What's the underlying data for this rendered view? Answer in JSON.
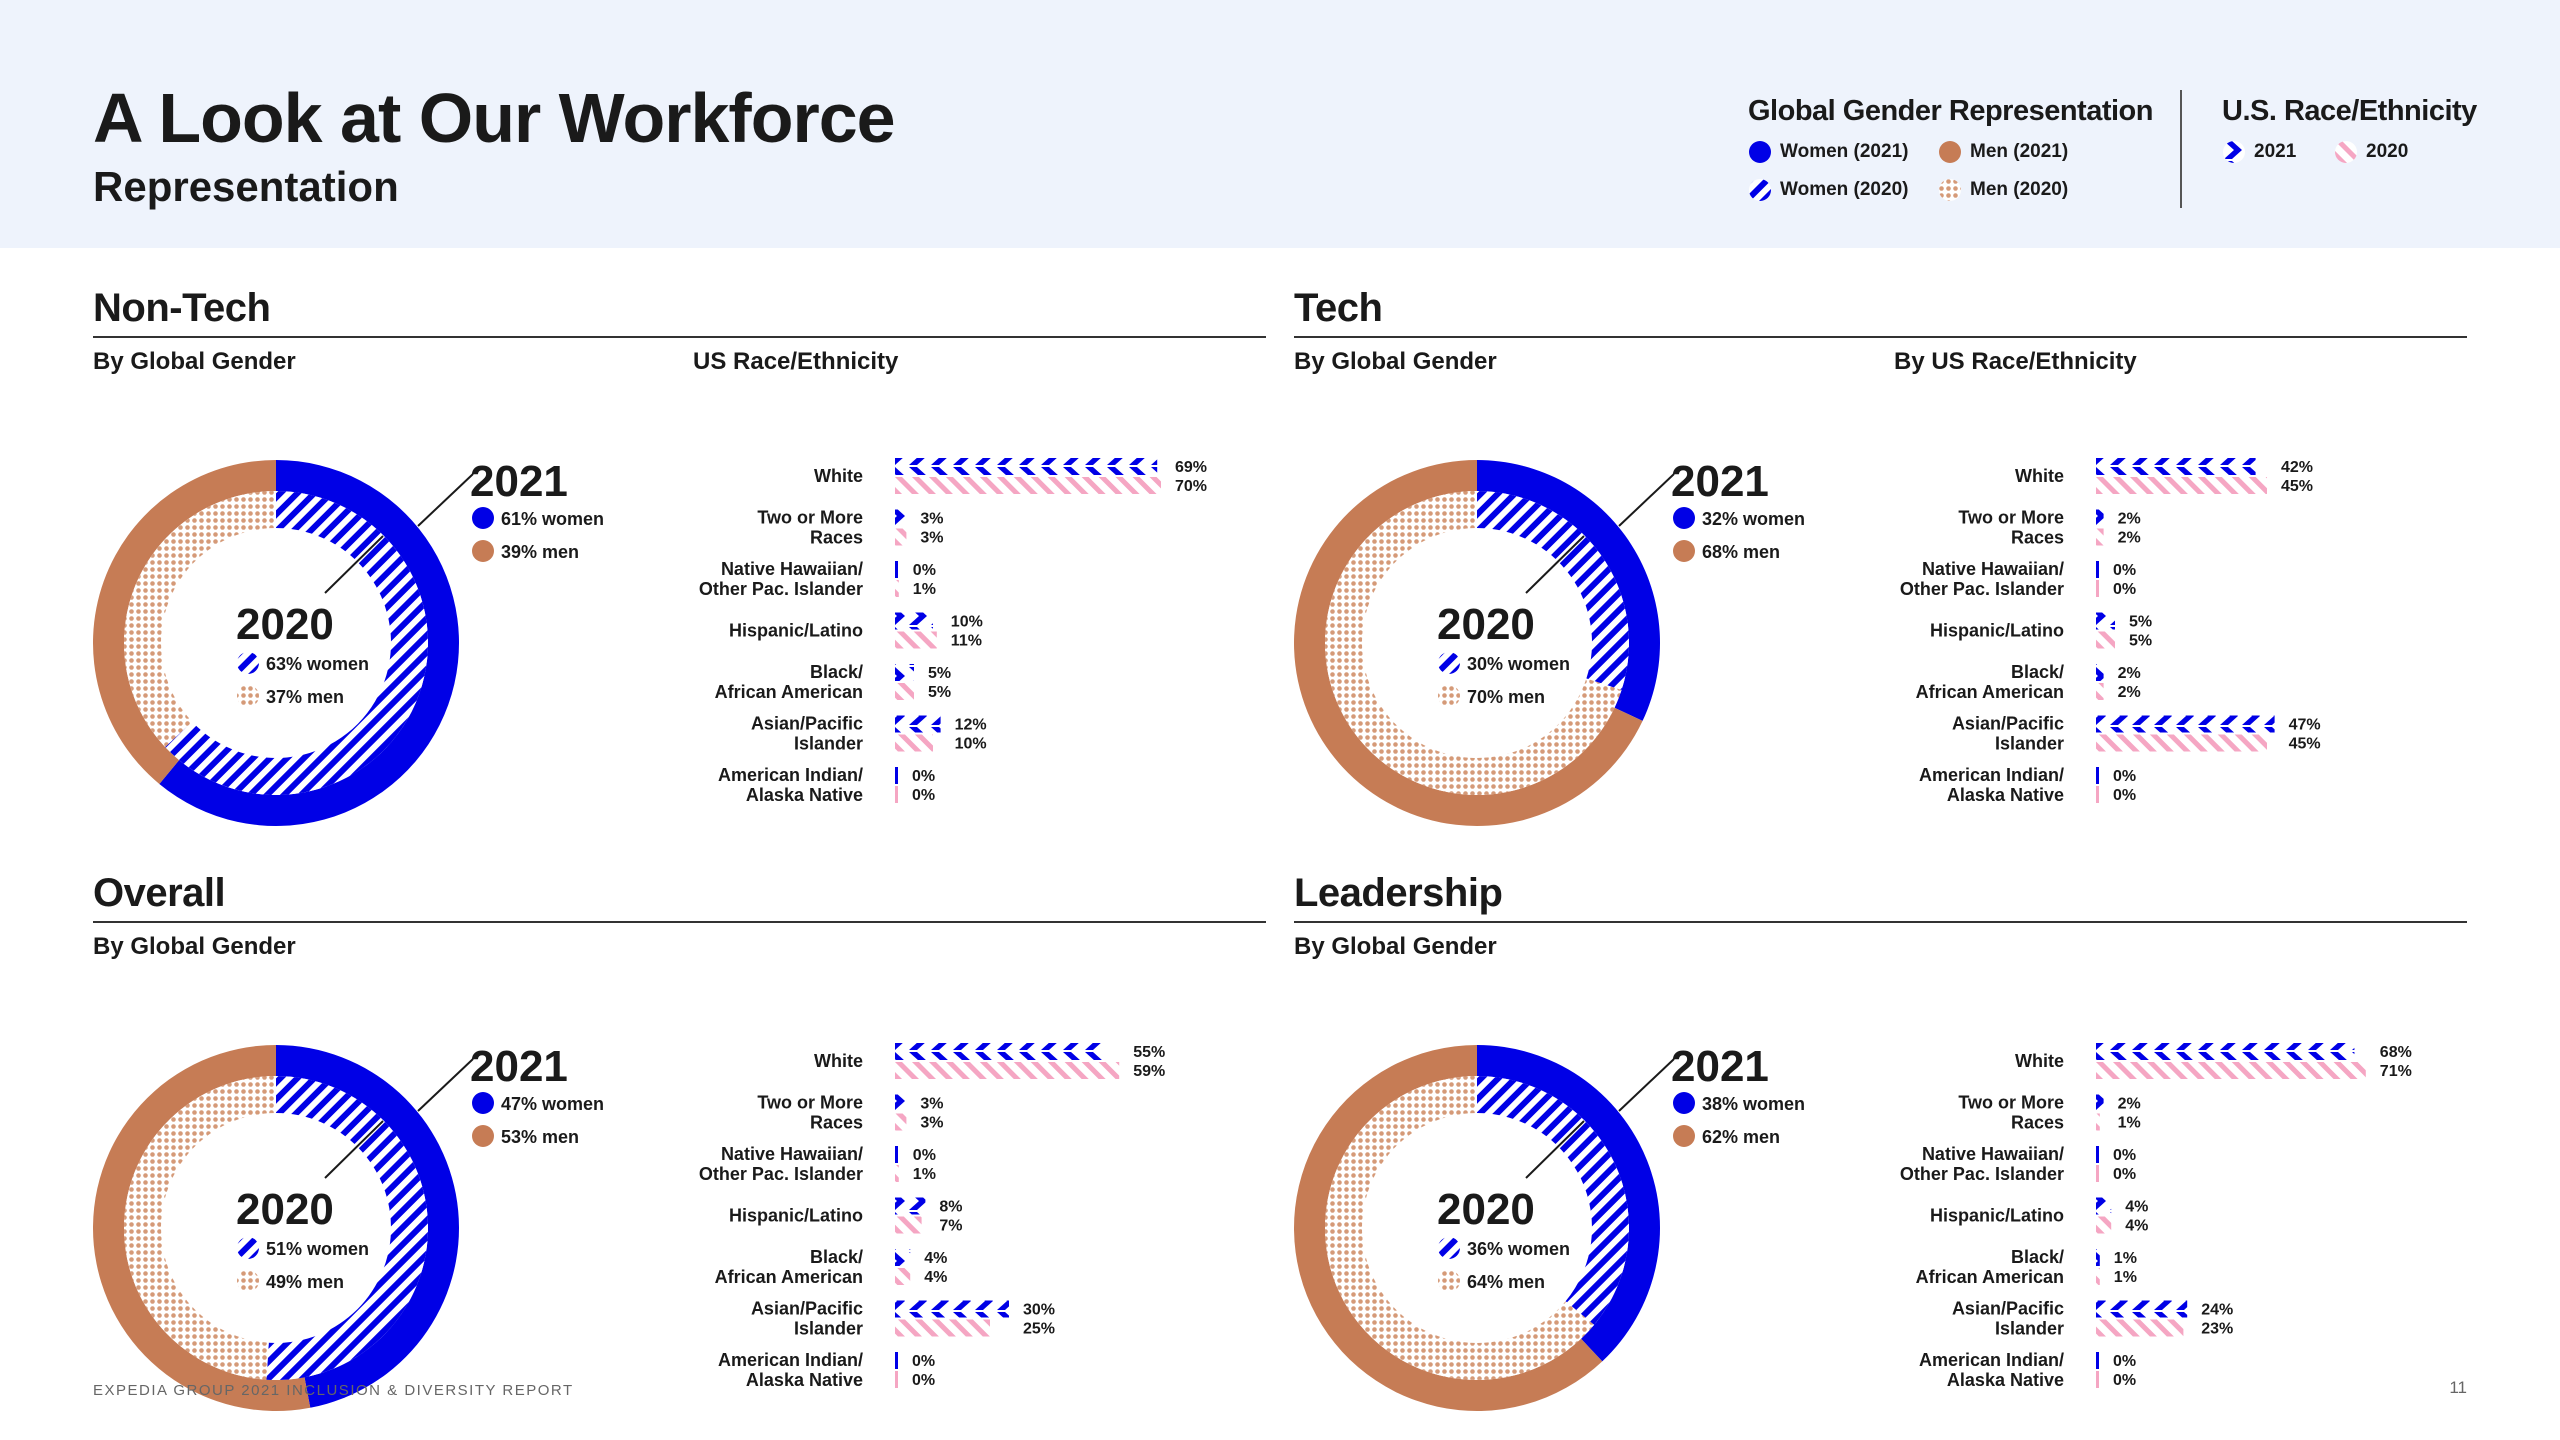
{
  "header": {
    "title": "A Look at Our Workforce",
    "subtitle": "Representation"
  },
  "legend": {
    "gender_title": "Global Gender Representation",
    "women_2021": "Women (2021)",
    "men_2021": "Men (2021)",
    "women_2020": "Women (2020)",
    "men_2020": "Men (2020)",
    "race_title": "U.S. Race/Ethnicity",
    "race_2021": "2021",
    "race_2020": "2020"
  },
  "colors": {
    "women": "#0000e6",
    "men": "#c67c55",
    "men_dots": "#e3b79e",
    "pink": "#f5a6c3",
    "text": "#1a1a1a"
  },
  "footer": {
    "text": "EXPEDIA GROUP 2021 INCLUSION & DIVERSITY REPORT",
    "page": "11"
  },
  "chart_data": [
    {
      "type": "donut+bar",
      "title": "Non-Tech",
      "gender_label": "By Global Gender",
      "race_label": "US Race/Ethnicity",
      "gender": {
        "year_outer": "2021",
        "women_outer": 61,
        "men_outer": 39,
        "women_outer_label": "61% women",
        "men_outer_label": "39% men",
        "year_inner": "2020",
        "women_inner": 63,
        "men_inner": 37,
        "women_inner_label": "63% women",
        "men_inner_label": "37% men"
      },
      "race": [
        {
          "line1": "White",
          "line2": "",
          "v2021": 69,
          "v2020": 70,
          "l2021": "69%",
          "l2020": "70%"
        },
        {
          "line1": "Two or More",
          "line2": "Races",
          "v2021": 3,
          "v2020": 3,
          "l2021": "3%",
          "l2020": "3%"
        },
        {
          "line1": "Native Hawaiian/",
          "line2": "Other Pac. Islander",
          "v2021": 0,
          "v2020": 1,
          "l2021": "0%",
          "l2020": "1%"
        },
        {
          "line1": "Hispanic/Latino",
          "line2": "",
          "v2021": 10,
          "v2020": 11,
          "l2021": "10%",
          "l2020": "11%"
        },
        {
          "line1": "Black/",
          "line2": "African American",
          "v2021": 5,
          "v2020": 5,
          "l2021": "5%",
          "l2020": "5%"
        },
        {
          "line1": "Asian/Pacific",
          "line2": "Islander",
          "v2021": 12,
          "v2020": 10,
          "l2021": "12%",
          "l2020": "10%"
        },
        {
          "line1": "American Indian/",
          "line2": "Alaska Native",
          "v2021": 0,
          "v2020": 0,
          "l2021": "0%",
          "l2020": "0%"
        }
      ]
    },
    {
      "type": "donut+bar",
      "title": "Tech",
      "gender_label": "By Global Gender",
      "race_label": "By US Race/Ethnicity",
      "gender": {
        "year_outer": "2021",
        "women_outer": 32,
        "men_outer": 68,
        "women_outer_label": "32% women",
        "men_outer_label": "68% men",
        "year_inner": "2020",
        "women_inner": 30,
        "men_inner": 70,
        "women_inner_label": "30% women",
        "men_inner_label": "70% men"
      },
      "race": [
        {
          "line1": "White",
          "line2": "",
          "v2021": 42,
          "v2020": 45,
          "l2021": "42%",
          "l2020": "45%"
        },
        {
          "line1": "Two or More",
          "line2": "Races",
          "v2021": 2,
          "v2020": 2,
          "l2021": "2%",
          "l2020": "2%"
        },
        {
          "line1": "Native Hawaiian/",
          "line2": "Other Pac. Islander",
          "v2021": 0,
          "v2020": 0,
          "l2021": "0%",
          "l2020": "0%"
        },
        {
          "line1": "Hispanic/Latino",
          "line2": "",
          "v2021": 5,
          "v2020": 5,
          "l2021": "5%",
          "l2020": "5%"
        },
        {
          "line1": "Black/",
          "line2": "African American",
          "v2021": 2,
          "v2020": 2,
          "l2021": "2%",
          "l2020": "2%"
        },
        {
          "line1": "Asian/Pacific",
          "line2": "Islander",
          "v2021": 47,
          "v2020": 45,
          "l2021": "47%",
          "l2020": "45%"
        },
        {
          "line1": "American Indian/",
          "line2": "Alaska Native",
          "v2021": 0,
          "v2020": 0,
          "l2021": "0%",
          "l2020": "0%"
        }
      ]
    },
    {
      "type": "donut+bar",
      "title": "Overall",
      "gender_label": "By Global Gender",
      "race_label": "",
      "gender": {
        "year_outer": "2021",
        "women_outer": 47,
        "men_outer": 53,
        "women_outer_label": "47% women",
        "men_outer_label": "53% men",
        "year_inner": "2020",
        "women_inner": 51,
        "men_inner": 49,
        "women_inner_label": "51% women",
        "men_inner_label": "49% men"
      },
      "race": [
        {
          "line1": "White",
          "line2": "",
          "v2021": 55,
          "v2020": 59,
          "l2021": "55%",
          "l2020": "59%"
        },
        {
          "line1": "Two or More",
          "line2": "Races",
          "v2021": 3,
          "v2020": 3,
          "l2021": "3%",
          "l2020": "3%"
        },
        {
          "line1": "Native Hawaiian/",
          "line2": "Other Pac. Islander",
          "v2021": 0,
          "v2020": 1,
          "l2021": "0%",
          "l2020": "1%"
        },
        {
          "line1": "Hispanic/Latino",
          "line2": "",
          "v2021": 8,
          "v2020": 7,
          "l2021": "8%",
          "l2020": "7%"
        },
        {
          "line1": "Black/",
          "line2": "African American",
          "v2021": 4,
          "v2020": 4,
          "l2021": "4%",
          "l2020": "4%"
        },
        {
          "line1": "Asian/Pacific",
          "line2": "Islander",
          "v2021": 30,
          "v2020": 25,
          "l2021": "30%",
          "l2020": "25%"
        },
        {
          "line1": "American Indian/",
          "line2": "Alaska Native",
          "v2021": 0,
          "v2020": 0,
          "l2021": "0%",
          "l2020": "0%"
        }
      ]
    },
    {
      "type": "donut+bar",
      "title": "Leadership",
      "gender_label": "By Global Gender",
      "race_label": "",
      "gender": {
        "year_outer": "2021",
        "women_outer": 38,
        "men_outer": 62,
        "women_outer_label": "38% women",
        "men_outer_label": "62% men",
        "year_inner": "2020",
        "women_inner": 36,
        "men_inner": 64,
        "women_inner_label": "36% women",
        "men_inner_label": "64% men"
      },
      "race": [
        {
          "line1": "White",
          "line2": "",
          "v2021": 68,
          "v2020": 71,
          "l2021": "68%",
          "l2020": "71%"
        },
        {
          "line1": "Two or More",
          "line2": "Races",
          "v2021": 2,
          "v2020": 1,
          "l2021": "2%",
          "l2020": "1%"
        },
        {
          "line1": "Native Hawaiian/",
          "line2": "Other Pac. Islander",
          "v2021": 0,
          "v2020": 0,
          "l2021": "0%",
          "l2020": "0%"
        },
        {
          "line1": "Hispanic/Latino",
          "line2": "",
          "v2021": 4,
          "v2020": 4,
          "l2021": "4%",
          "l2020": "4%"
        },
        {
          "line1": "Black/",
          "line2": "African American",
          "v2021": 1,
          "v2020": 1,
          "l2021": "1%",
          "l2020": "1%"
        },
        {
          "line1": "Asian/Pacific",
          "line2": "Islander",
          "v2021": 24,
          "v2020": 23,
          "l2021": "24%",
          "l2020": "23%"
        },
        {
          "line1": "American Indian/",
          "line2": "Alaska Native",
          "v2021": 0,
          "v2020": 0,
          "l2021": "0%",
          "l2020": "0%"
        }
      ]
    }
  ]
}
